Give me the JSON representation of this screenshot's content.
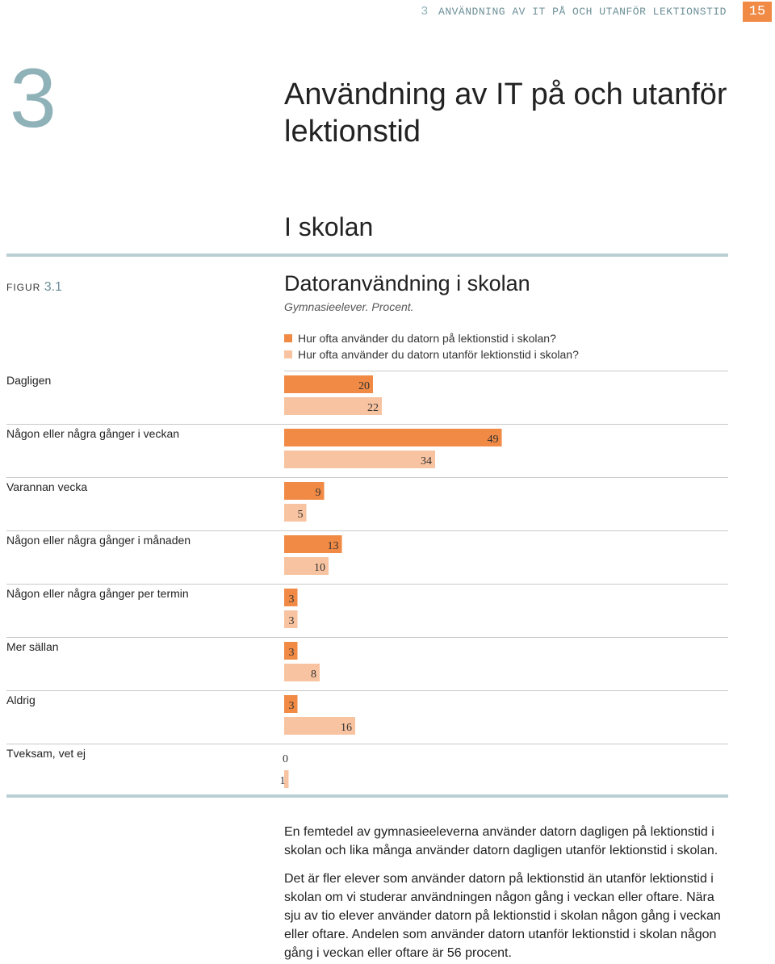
{
  "header": {
    "chapter_number": "3",
    "running_title": "ANVÄNDNING AV IT PÅ OCH UTANFÖR LEKTIONSTID",
    "page_number": "15"
  },
  "chapter": {
    "number": "3",
    "title": "Användning av IT på och utanför lektionstid"
  },
  "section": {
    "title": "I skolan"
  },
  "figure": {
    "label": "FIGUR",
    "number": "3.1",
    "title": "Datoranvändning i skolan",
    "subtitle": "Gymnasieelever. Procent."
  },
  "colors": {
    "series_1": "#f08a45",
    "series_2": "#f8c3a0",
    "accent": "#8fb1b8",
    "rule": "#b9cfd4"
  },
  "chart_data": {
    "type": "bar",
    "orientation": "horizontal",
    "categories": [
      "Dagligen",
      "Någon eller några gånger i veckan",
      "Varannan vecka",
      "Någon eller några gånger i månaden",
      "Någon eller några gånger per termin",
      "Mer sällan",
      "Aldrig",
      "Tveksam, vet ej"
    ],
    "series": [
      {
        "name": "Hur ofta använder du datorn på lektionstid i skolan?",
        "values": [
          20,
          49,
          9,
          13,
          3,
          3,
          3,
          0
        ]
      },
      {
        "name": "Hur ofta använder du datorn utanför lektionstid i skolan?",
        "values": [
          22,
          34,
          5,
          10,
          3,
          8,
          16,
          1
        ]
      }
    ],
    "legend_position": "top-left",
    "grid": false
  },
  "body": {
    "paragraph_1": "En femtedel av gymnasieeleverna använder datorn dagligen på lektionstid i skolan och lika många använder datorn dagligen utanför lektionstid i skolan.",
    "paragraph_2": "Det är fler elever som använder datorn på lektionstid än utanför lektionstid i skolan om vi studerar användningen någon gång i veckan eller oftare. Nära sju av tio elever använder datorn på lektionstid i skolan någon gång i veckan eller oftare. Andelen som använder datorn utanför lektionstid i skolan någon gång i veckan eller oftare är 56 procent."
  }
}
